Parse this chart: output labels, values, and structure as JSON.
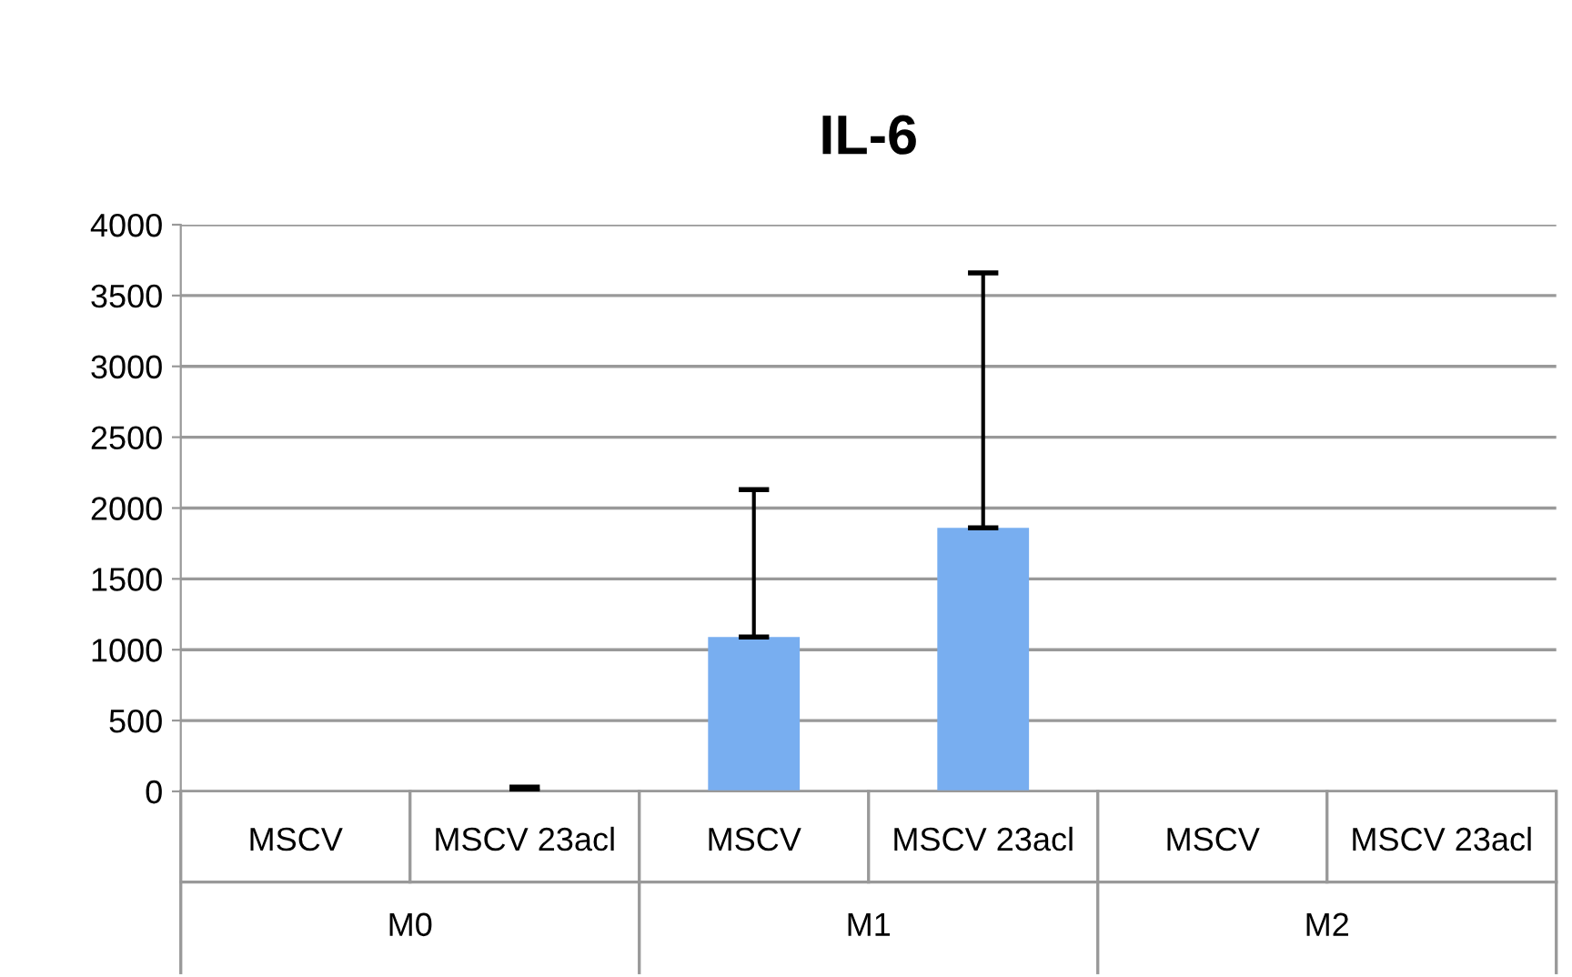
{
  "chart_data": {
    "type": "bar",
    "title": "IL-6",
    "categories": [
      "MSCV",
      "MSCV 23acl",
      "MSCV",
      "MSCV 23acl",
      "MSCV",
      "MSCV 23acl"
    ],
    "values": [
      0,
      0,
      1090,
      1860,
      0,
      0
    ],
    "errors": [
      null,
      30,
      1040,
      1800,
      null,
      null
    ],
    "color": "#78aef0",
    "annotations": [
      "M0",
      "M1",
      "M2"
    ],
    "ylim": [
      0,
      4000
    ],
    "yticks": [
      0,
      500,
      1000,
      1500,
      2000,
      2500,
      3000,
      3500,
      4000
    ],
    "grid": "y",
    "legend": false
  }
}
